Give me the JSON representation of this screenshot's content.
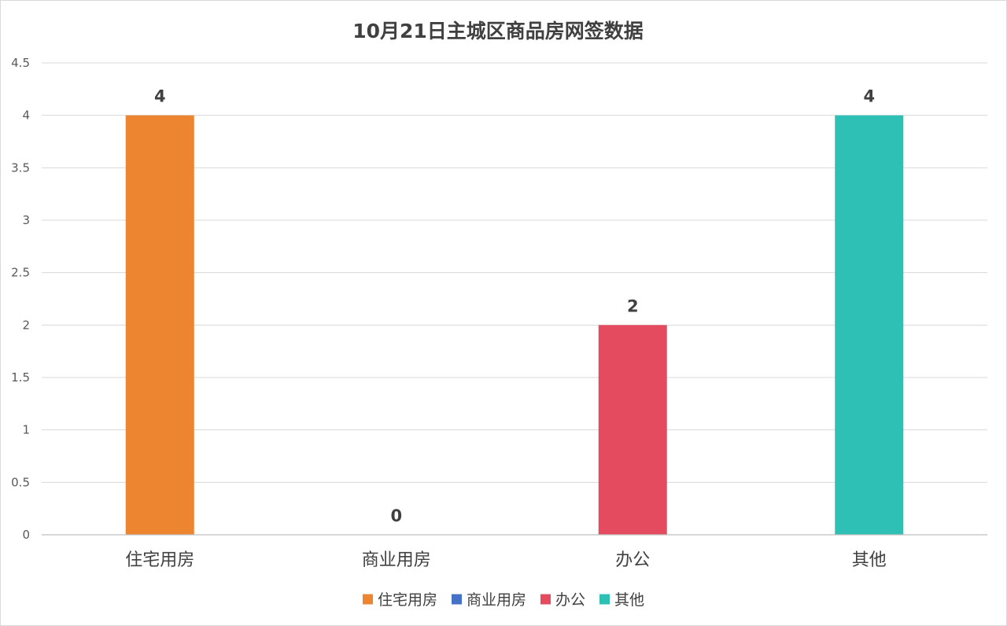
{
  "chart_data": {
    "type": "bar",
    "title": "10月21日主城区商品房网签数据",
    "categories": [
      "住宅用房",
      "商业用房",
      "办公",
      "其他"
    ],
    "values": [
      4,
      0,
      2,
      4
    ],
    "colors": [
      "#ED8530",
      "#4472C4",
      "#E54B5E",
      "#2EC0B5"
    ],
    "ylim": [
      0,
      4.5
    ],
    "yticks": [
      "0",
      "0.5",
      "1",
      "1.5",
      "2",
      "2.5",
      "3",
      "3.5",
      "4",
      "4.5"
    ],
    "ytick_values": [
      0,
      0.5,
      1,
      1.5,
      2,
      2.5,
      3,
      3.5,
      4,
      4.5
    ],
    "grid": true,
    "legend": {
      "position": "bottom",
      "entries": [
        "住宅用房",
        "商业用房",
        "办公",
        "其他"
      ]
    }
  }
}
